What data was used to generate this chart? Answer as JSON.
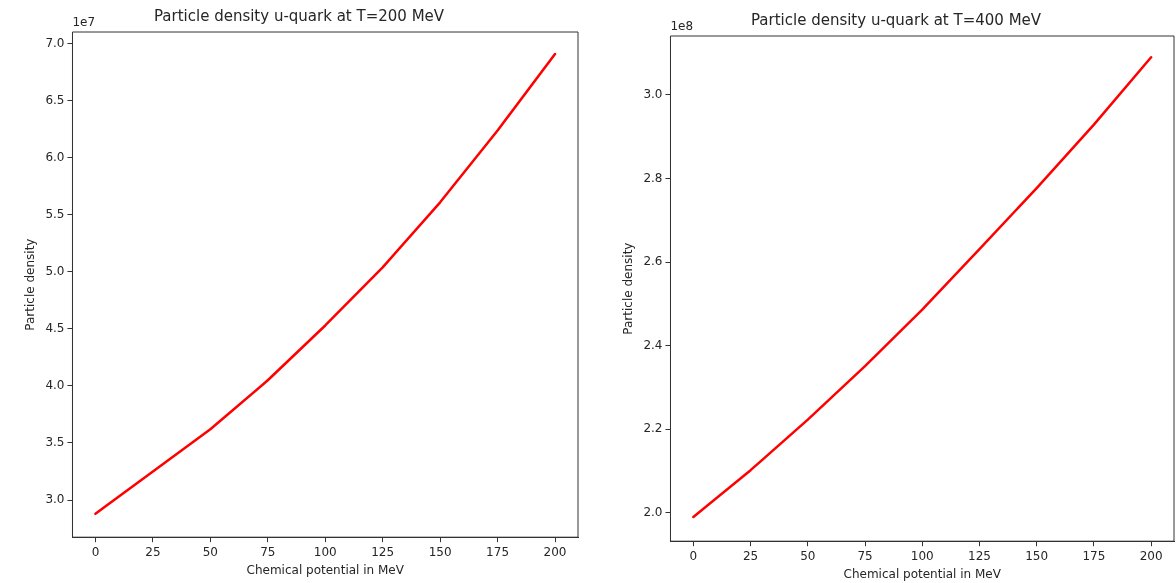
{
  "chart_data": [
    {
      "type": "line",
      "title": "Particle density u-quark at T=200 MeV",
      "xlabel": "Chemical potential in MeV",
      "ylabel": "Particle density",
      "annotations": [
        "1e7"
      ],
      "x": [
        0,
        25,
        50,
        75,
        100,
        125,
        150,
        175,
        200
      ],
      "series": [
        {
          "color": "#ff0000",
          "values": [
            2.88,
            3.25,
            3.62,
            4.05,
            4.53,
            5.04,
            5.61,
            6.24,
            6.91
          ]
        }
      ],
      "xlim": [
        -10,
        210
      ],
      "xticks": [
        0,
        25,
        50,
        75,
        100,
        125,
        150,
        175,
        200
      ],
      "ylim": [
        2.674,
        7.103
      ],
      "yticks": [
        {
          "value": 3,
          "label": "3.0"
        },
        3.5,
        {
          "value": 4,
          "label": "4.0"
        },
        4.5,
        {
          "value": 5,
          "label": "5.0"
        },
        5.5,
        {
          "value": 6,
          "label": "6.0"
        },
        6.5,
        {
          "value": 7,
          "label": "7.0"
        }
      ],
      "grid": false,
      "legend": false,
      "marker": "none",
      "line_style": "solid"
    },
    {
      "type": "line",
      "title": "Particle density u-quark at T=400 MeV",
      "xlabel": "Chemical potential in MeV",
      "ylabel": "Particle density",
      "annotations": [
        "1e8"
      ],
      "x": [
        0,
        25,
        50,
        75,
        100,
        125,
        150,
        175,
        200
      ],
      "series": [
        {
          "color": "#ff0000",
          "values": [
            1.99,
            2.102,
            2.223,
            2.351,
            2.486,
            2.631,
            2.777,
            2.929,
            3.09
          ]
        }
      ],
      "xlim": [
        -10,
        210
      ],
      "xticks": [
        0,
        25,
        50,
        75,
        100,
        125,
        150,
        175,
        200
      ],
      "ylim": [
        1.932,
        3.141
      ],
      "yticks": [
        {
          "value": 2,
          "label": "2.0"
        },
        2.2,
        2.4,
        2.6,
        2.8,
        {
          "value": 3,
          "label": "3.0"
        }
      ],
      "grid": false,
      "legend": false,
      "marker": "none",
      "line_style": "solid"
    }
  ]
}
